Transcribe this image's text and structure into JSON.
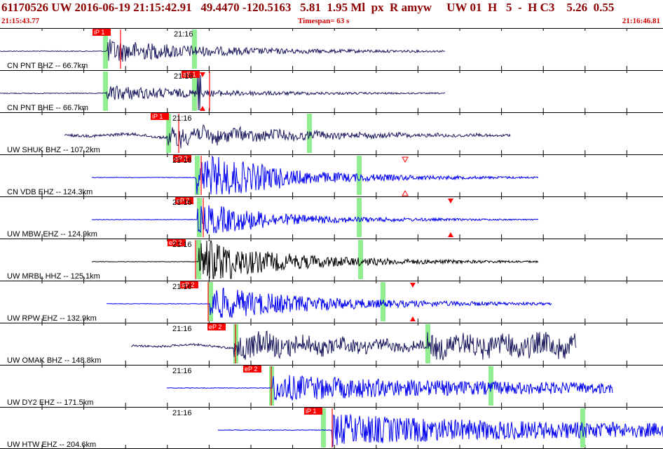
{
  "header": {
    "title": "61170526 UW 2016-06-19 21:15:42.91   49.4470 -120.5163   5.81  1.95 Ml  px  R amyw     UW 01  H   5  -  H C3    5.26  0.55",
    "start_time": "21:15:43.77",
    "timespan": "Timespan=  63 s",
    "end_time": "21:16:46.81"
  },
  "colors": {
    "pick_label_bg": "#ff0000",
    "pick_line": "#ff0000",
    "trace_navy": "#1c1a5e",
    "trace_blue": "#0000ee",
    "trace_black": "#000000",
    "highlight": "#90ee90",
    "header_text": "#8b0000",
    "grid": "#000000"
  },
  "icons": {
    "arrow_down": "red-down-triangle-icon",
    "arrow_up": "red-up-triangle-icon"
  },
  "time_marker": "21:16",
  "traces": [
    {
      "label": "CN PNT BHZ -- 66.7km",
      "color": "navy",
      "pick": "iP 1"
    },
    {
      "label": "CN PNT BHE -- 66.7km",
      "color": "navy",
      "pick": "eS 1"
    },
    {
      "label": "UW SHUK BHZ -- 107.2km",
      "color": "navy",
      "pick": "iP 1"
    },
    {
      "label": "CN VDB EHZ -- 124.3km",
      "color": "blue",
      "pick": "eP 2"
    },
    {
      "label": "UW MBW EHZ -- 124.9km",
      "color": "blue",
      "pick": "eP 2"
    },
    {
      "label": "UW MRBL HHZ -- 125.1km",
      "color": "black",
      "pick": "eP 2"
    },
    {
      "label": "UW RPW EHZ -- 132.9km",
      "color": "blue",
      "pick": "eP 2"
    },
    {
      "label": "UW OMAK BHZ -- 148.8km",
      "color": "navy",
      "pick": "eP 2"
    },
    {
      "label": "UW DY2 EHZ -- 171.5km",
      "color": "blue",
      "pick": "eP 2"
    },
    {
      "label": "UW HTW EHZ -- 204.6km",
      "color": "blue",
      "pick": "iP 1"
    }
  ]
}
